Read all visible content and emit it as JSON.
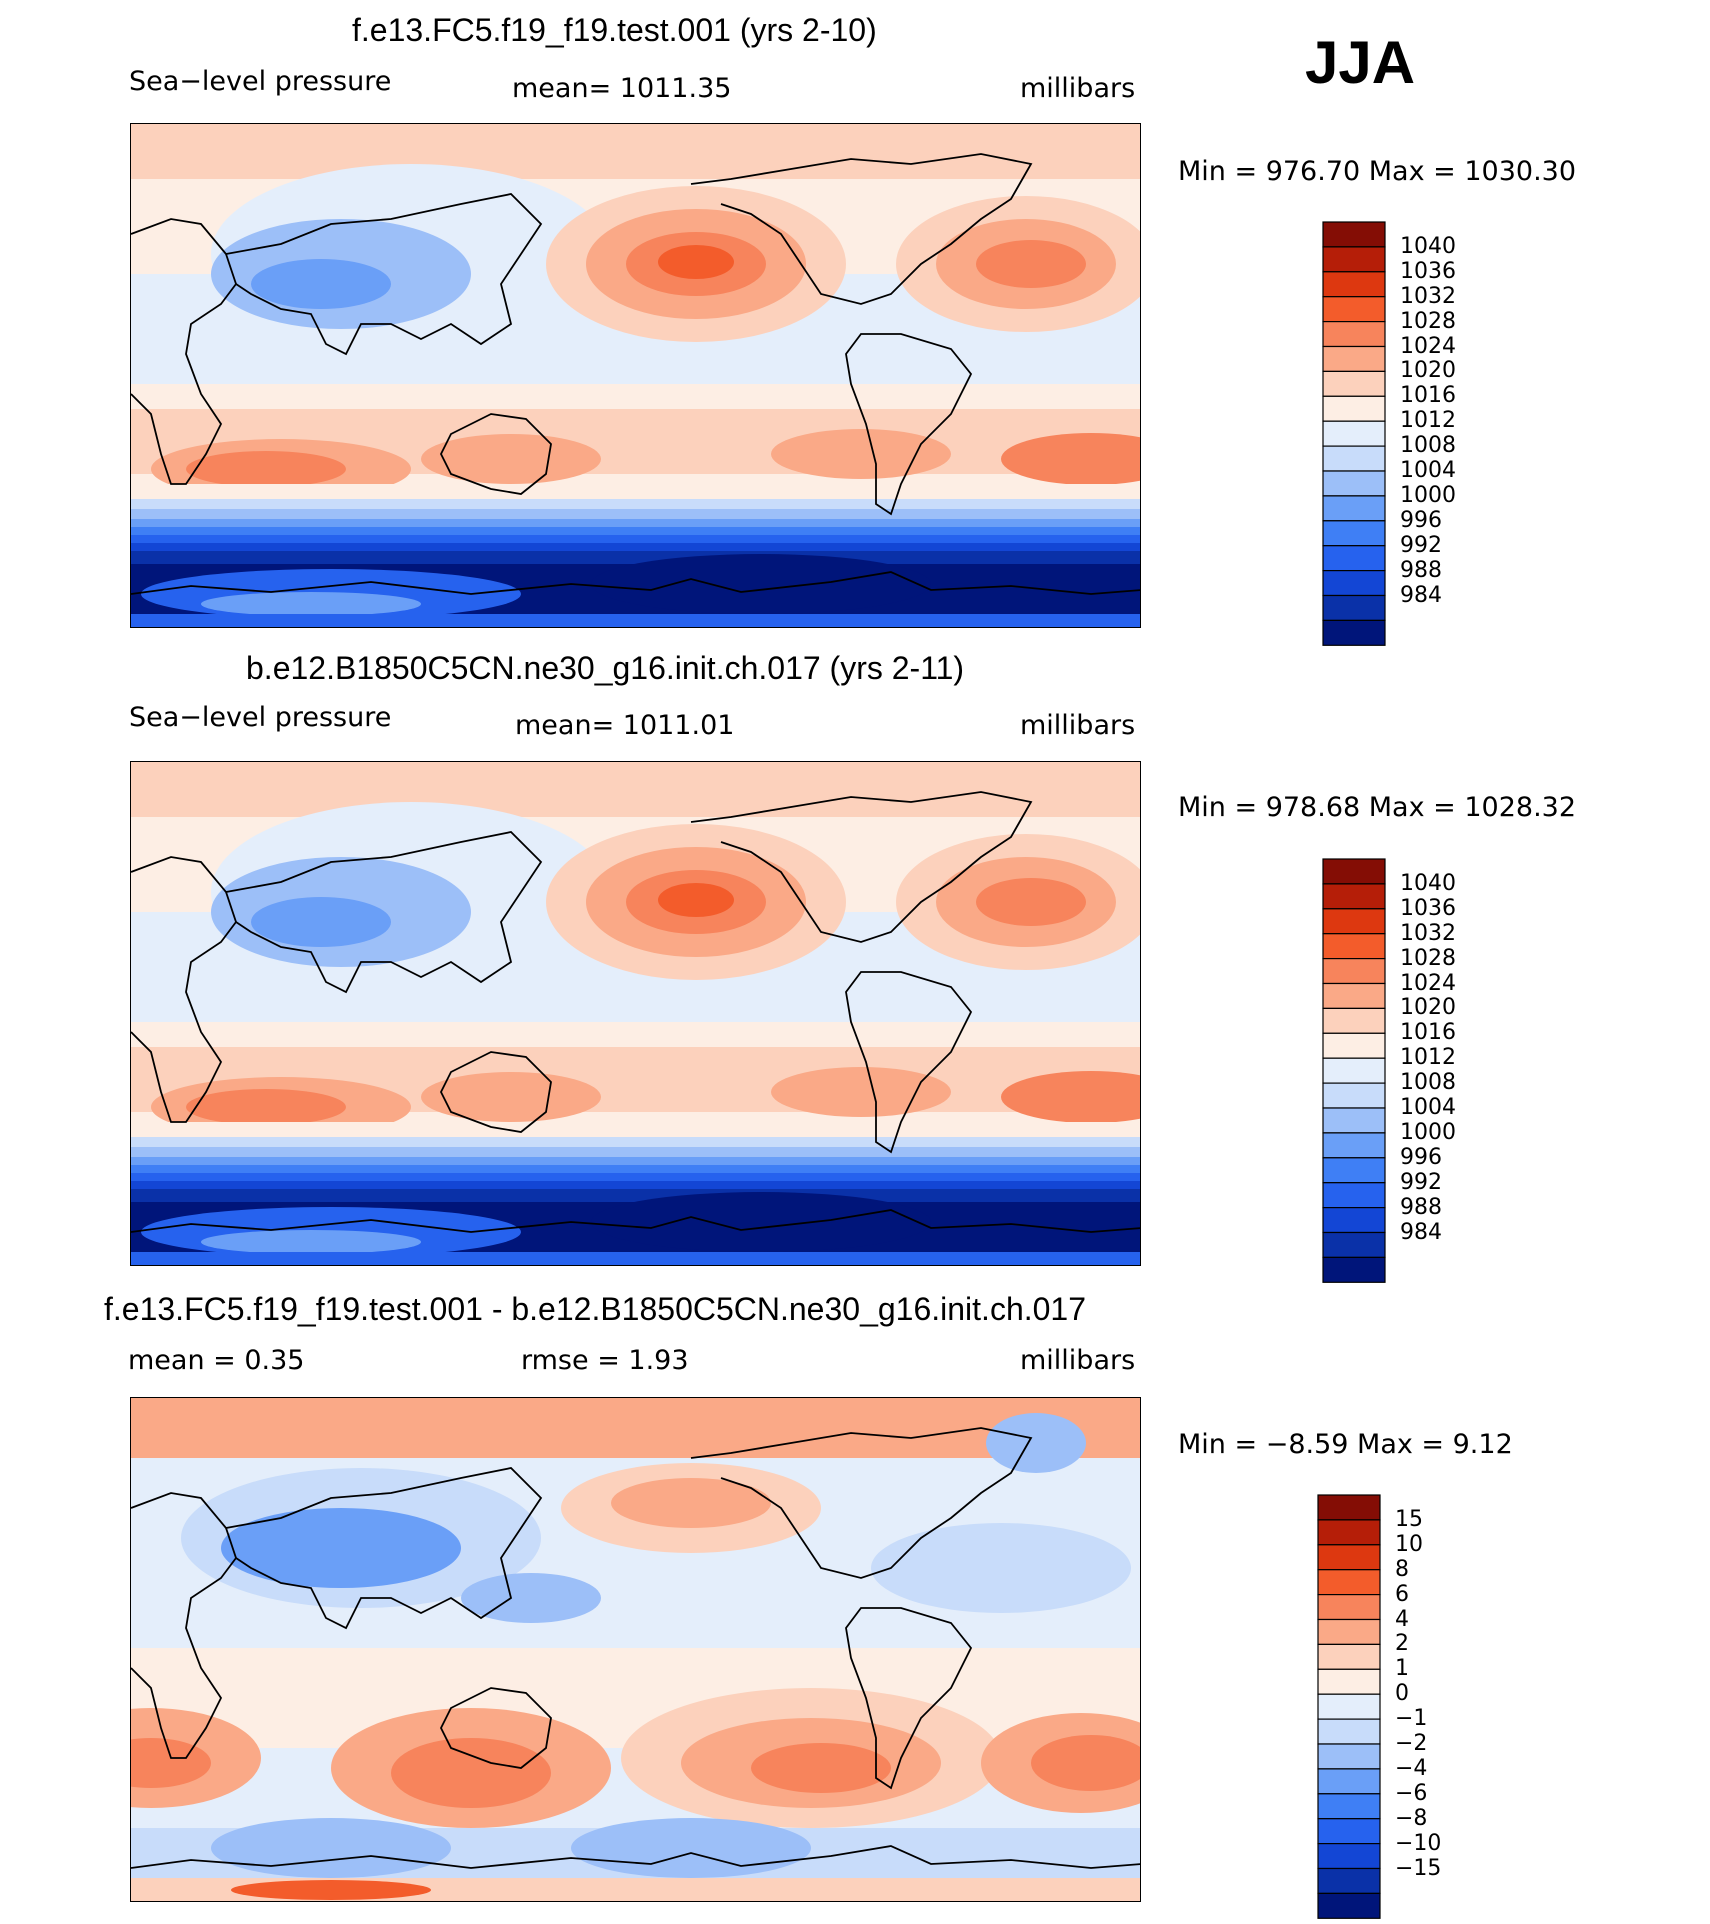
{
  "season": "JJA",
  "palette": {
    "slp": [
      "#00157a",
      "#0a31a8",
      "#1346d5",
      "#2662ee",
      "#3f7ff5",
      "#6a9ff7",
      "#9cbff8",
      "#c8dcfa",
      "#e4eefb",
      "#fdeee4",
      "#fcd1bc",
      "#faa987",
      "#f7845c",
      "#f35c2b",
      "#dd3810",
      "#b51e08",
      "#840d05"
    ],
    "diff": [
      "#00157a",
      "#0a31a8",
      "#1346d5",
      "#2662ee",
      "#3f7ff5",
      "#6a9ff7",
      "#9cbff8",
      "#c8dcfa",
      "#e4eefb",
      "#fdeee4",
      "#fcd1bc",
      "#faa987",
      "#f7845c",
      "#f35c2b",
      "#dd3810",
      "#b51e08",
      "#840d05"
    ]
  },
  "panels": [
    {
      "title": "f.e13.FC5.f19_f19.test.001 (yrs 2-10)",
      "left_label": "Sea−level pressure",
      "center_label": "mean=  1011.35",
      "right_label": "millibars",
      "minmax": "Min  =  976.70  Max  =  1030.30"
    },
    {
      "title": "b.e12.B1850C5CN.ne30_g16.init.ch.017 (yrs 2-11)",
      "left_label": "Sea−level pressure",
      "center_label": "mean=  1011.01",
      "right_label": "millibars",
      "minmax": "Min  =  978.68  Max  =  1028.32"
    },
    {
      "title": "f.e13.FC5.f19_f19.test.001 - b.e12.B1850C5CN.ne30_g16.init.ch.017",
      "left_label": "mean  =      0.35",
      "center_label": "rmse  =      1.93",
      "right_label": "millibars",
      "minmax": "Min  =    −8.59  Max  =       9.12"
    }
  ],
  "chart_data": [
    {
      "type": "heatmap",
      "title": "f.e13.FC5.f19_f19.test.001 (yrs 2-10)",
      "variable": "Sea-level pressure",
      "units": "millibars",
      "mean": 1011.35,
      "min": 976.7,
      "max": 1030.3,
      "colorbar_levels": [
        "1040",
        "1036",
        "1032",
        "1028",
        "1024",
        "1020",
        "1016",
        "1012",
        "1008",
        "1004",
        "1000",
        "996",
        "992",
        "988",
        "984"
      ]
    },
    {
      "type": "heatmap",
      "title": "b.e12.B1850C5CN.ne30_g16.init.ch.017 (yrs 2-11)",
      "variable": "Sea-level pressure",
      "units": "millibars",
      "mean": 1011.01,
      "min": 978.68,
      "max": 1028.32,
      "colorbar_levels": [
        "1040",
        "1036",
        "1032",
        "1028",
        "1024",
        "1020",
        "1016",
        "1012",
        "1008",
        "1004",
        "1000",
        "996",
        "992",
        "988",
        "984"
      ]
    },
    {
      "type": "heatmap",
      "title": "f.e13.FC5.f19_f19.test.001 - b.e12.B1850C5CN.ne30_g16.init.ch.017",
      "variable": "Sea-level pressure difference",
      "units": "millibars",
      "mean": 0.35,
      "rmse": 1.93,
      "min": -8.59,
      "max": 9.12,
      "colorbar_levels": [
        "15",
        "10",
        "8",
        "6",
        "4",
        "2",
        "1",
        "0",
        "−1",
        "−2",
        "−4",
        "−6",
        "−8",
        "−10",
        "−15"
      ]
    }
  ]
}
